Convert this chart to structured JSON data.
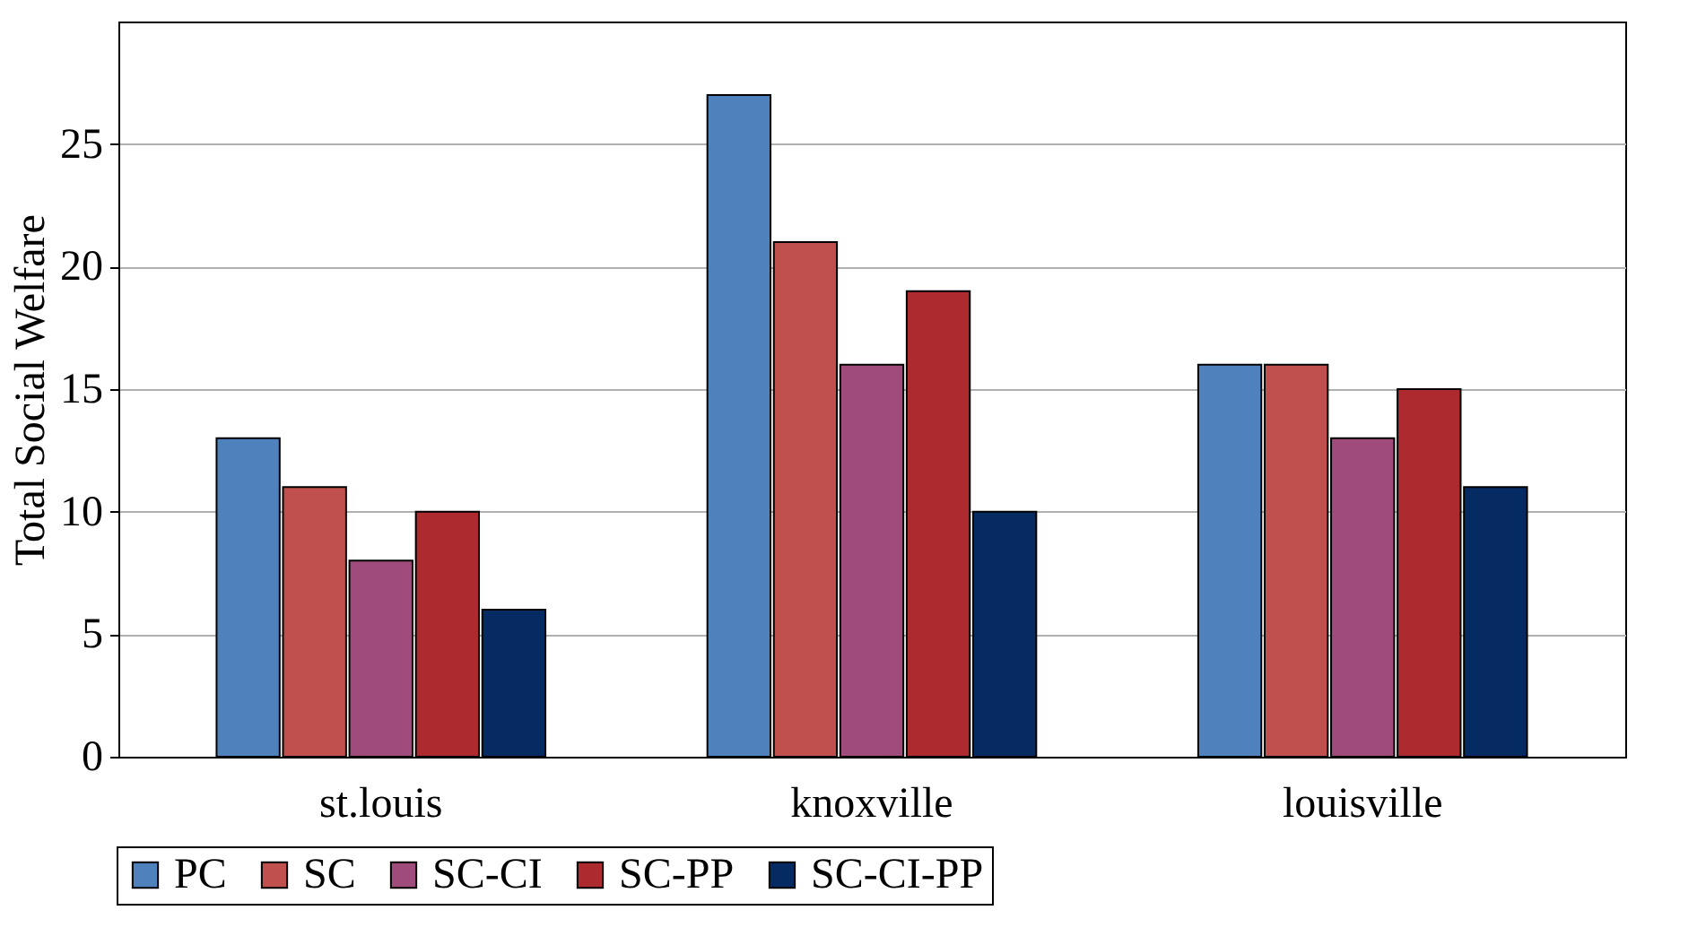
{
  "chart_data": {
    "type": "bar",
    "ylabel": "Total Social Welfare",
    "categories": [
      "st.louis",
      "knoxville",
      "louisville"
    ],
    "series": [
      {
        "name": "PC",
        "color": "#4f81bd",
        "values": [
          13,
          27,
          16
        ]
      },
      {
        "name": "SC",
        "color": "#c0504d",
        "values": [
          11,
          21,
          16
        ]
      },
      {
        "name": "SC-CI",
        "color": "#9f4c7c",
        "values": [
          8,
          16,
          13
        ]
      },
      {
        "name": "SC-PP",
        "color": "#ad2a2f",
        "values": [
          10,
          19,
          15
        ]
      },
      {
        "name": "SC-CI-PP",
        "color": "#062b63",
        "values": [
          6,
          10,
          11
        ]
      }
    ],
    "ylim": [
      0,
      30
    ],
    "yticks": [
      0,
      5,
      10,
      15,
      20,
      25
    ],
    "grid": "y",
    "legend": "bottom left"
  }
}
